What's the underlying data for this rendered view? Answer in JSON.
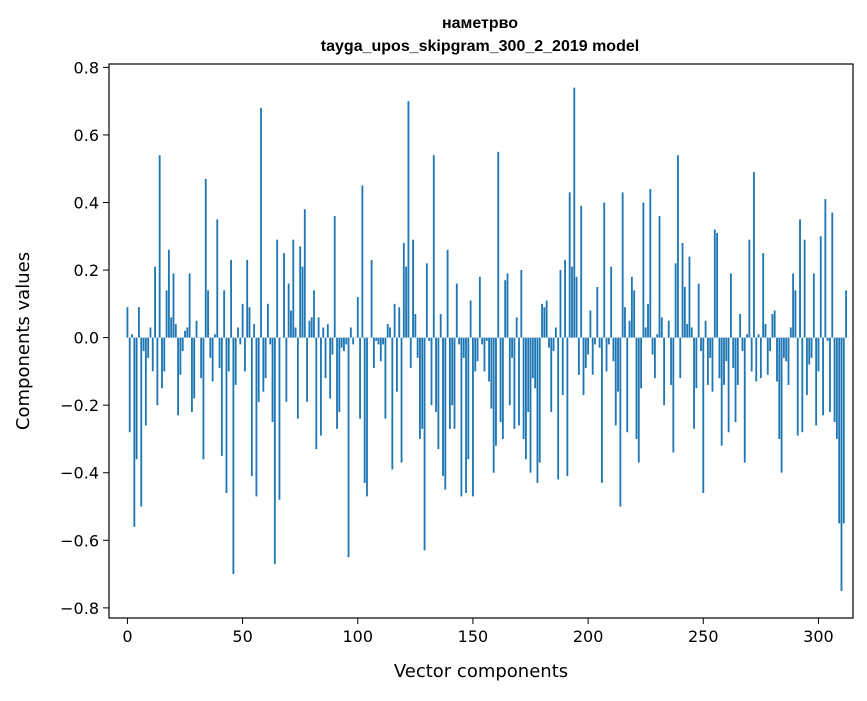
{
  "chart_data": {
    "type": "bar",
    "title": "наметрво",
    "subtitle": "tayga_upos_skipgram_300_2_2019 model",
    "xlabel": "Vector components",
    "ylabel": "Components values",
    "xlim": [
      -8,
      315
    ],
    "ylim": [
      -0.83,
      0.81
    ],
    "xticks": [
      0,
      50,
      100,
      150,
      200,
      250,
      300
    ],
    "yticks": [
      -0.8,
      -0.6,
      -0.4,
      -0.2,
      0.0,
      0.2,
      0.4,
      0.6,
      0.8
    ],
    "ytick_labels": [
      "−0.8",
      "−0.6",
      "−0.4",
      "−0.2",
      "0.0",
      "0.2",
      "0.4",
      "0.6",
      "0.8"
    ],
    "grid": false,
    "legend": "none",
    "bar_color": "#1f77b4",
    "series": [
      {
        "values": [
          0.09,
          -0.28,
          0.01,
          -0.56,
          -0.36,
          0.09,
          -0.5,
          -0.04,
          -0.26,
          -0.06,
          0.03,
          -0.1,
          0.21,
          -0.2,
          0.54,
          -0.15,
          -0.1,
          0.14,
          0.26,
          0.06,
          0.19,
          0.04,
          -0.23,
          -0.11,
          -0.04,
          0.02,
          0.03,
          0.19,
          -0.22,
          -0.18,
          0.05,
          0.0,
          -0.12,
          -0.36,
          0.47,
          0.14,
          -0.06,
          -0.13,
          0.01,
          0.35,
          -0.09,
          -0.35,
          0.14,
          -0.46,
          -0.1,
          0.23,
          -0.7,
          -0.14,
          0.03,
          -0.02,
          0.1,
          -0.1,
          0.23,
          0.09,
          -0.41,
          0.04,
          -0.47,
          -0.19,
          0.68,
          -0.16,
          -0.12,
          0.1,
          -0.02,
          -0.25,
          -0.67,
          0.29,
          -0.48,
          0.0,
          0.25,
          -0.19,
          0.16,
          0.08,
          0.29,
          0.03,
          -0.24,
          0.27,
          0.21,
          0.38,
          -0.19,
          0.05,
          0.06,
          0.14,
          -0.33,
          0.06,
          -0.29,
          0.03,
          -0.12,
          0.04,
          -0.18,
          -0.05,
          0.36,
          -0.27,
          -0.22,
          -0.03,
          -0.04,
          -0.02,
          -0.65,
          0.03,
          -0.02,
          0.0,
          0.12,
          -0.24,
          0.45,
          -0.43,
          -0.47,
          0.0,
          0.23,
          -0.09,
          -0.01,
          -0.02,
          -0.07,
          -0.02,
          -0.24,
          0.04,
          0.03,
          -0.39,
          0.1,
          -0.16,
          0.09,
          -0.37,
          0.28,
          0.21,
          0.7,
          -0.09,
          0.29,
          0.07,
          -0.06,
          -0.3,
          -0.27,
          -0.63,
          0.22,
          -0.01,
          -0.2,
          0.54,
          -0.22,
          -0.33,
          0.07,
          -0.41,
          -0.45,
          0.26,
          -0.27,
          -0.2,
          -0.27,
          0.16,
          -0.02,
          -0.47,
          -0.06,
          -0.46,
          -0.36,
          0.11,
          -0.47,
          -0.1,
          -0.07,
          0.18,
          -0.02,
          -0.1,
          -0.01,
          -0.13,
          -0.21,
          -0.4,
          -0.32,
          0.55,
          -0.25,
          -0.3,
          0.17,
          0.19,
          -0.2,
          -0.06,
          -0.27,
          0.06,
          -0.26,
          0.2,
          -0.3,
          -0.36,
          -0.22,
          -0.4,
          -0.12,
          -0.15,
          -0.43,
          -0.37,
          0.1,
          0.09,
          0.11,
          -0.03,
          -0.22,
          -0.04,
          0.03,
          -0.42,
          0.2,
          -0.17,
          0.23,
          -0.41,
          0.43,
          0.21,
          0.74,
          0.18,
          -0.11,
          0.39,
          -0.17,
          -0.09,
          -0.05,
          0.08,
          -0.11,
          -0.02,
          0.15,
          -0.03,
          -0.43,
          0.4,
          -0.1,
          -0.02,
          0.21,
          -0.07,
          -0.26,
          -0.16,
          -0.5,
          0.43,
          0.09,
          -0.28,
          0.05,
          0.18,
          0.14,
          -0.3,
          -0.37,
          -0.15,
          0.4,
          0.03,
          0.1,
          0.44,
          -0.05,
          -0.12,
          0.01,
          0.36,
          0.06,
          -0.2,
          0.0,
          0.05,
          -0.14,
          -0.34,
          0.22,
          0.54,
          -0.12,
          0.28,
          0.15,
          0.04,
          0.24,
          0.03,
          -0.27,
          -0.15,
          0.16,
          -0.04,
          -0.46,
          0.05,
          -0.14,
          -0.06,
          -0.16,
          0.32,
          0.31,
          -0.12,
          -0.32,
          -0.14,
          -0.07,
          -0.28,
          0.19,
          -0.09,
          -0.25,
          -0.14,
          0.07,
          -0.04,
          -0.37,
          0.01,
          0.29,
          -0.1,
          0.49,
          -0.13,
          0.01,
          -0.12,
          0.25,
          0.04,
          -0.11,
          -0.04,
          0.07,
          0.08,
          -0.13,
          -0.3,
          -0.4,
          -0.06,
          -0.07,
          -0.14,
          0.03,
          0.19,
          0.14,
          -0.29,
          0.35,
          -0.28,
          0.29,
          -0.17,
          -0.08,
          -0.06,
          0.19,
          -0.26,
          -0.1,
          0.3,
          -0.23,
          0.41,
          -0.01,
          -0.22,
          0.37,
          -0.25,
          -0.3,
          -0.55,
          -0.75,
          -0.55,
          0.14,
          0.0
        ]
      }
    ]
  }
}
